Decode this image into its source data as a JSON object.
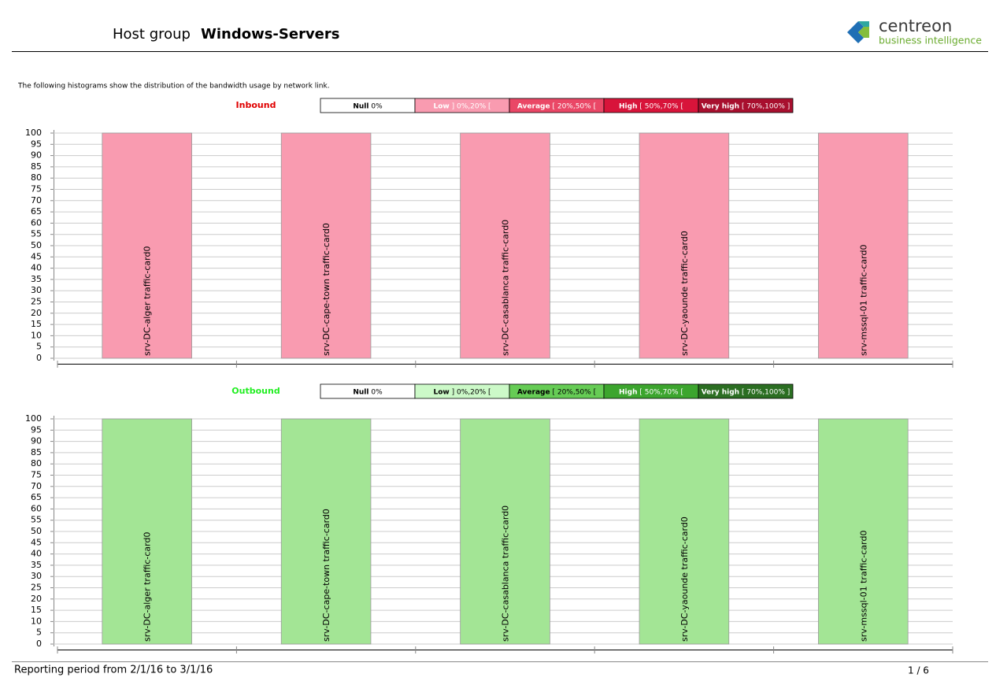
{
  "header": {
    "prefix": "Host group",
    "title": "Windows-Servers",
    "logo_name": "centreon",
    "logo_tagline": "business intelligence"
  },
  "intro": "The following histograms show the distribution of the bandwidth usage by network link.",
  "chart_data": [
    {
      "type": "bar",
      "title": "Inbound",
      "title_color": "#e00000",
      "legend": [
        {
          "name": "Null",
          "range": "0%",
          "color": "#ffffff",
          "text_color": "#000000"
        },
        {
          "name": "Low",
          "range": "] 0%,20% [",
          "color": "#f99bb0",
          "text_color": "#ffffff"
        },
        {
          "name": "Average",
          "range": "[ 20%,50% [",
          "color": "#ea4766",
          "text_color": "#ffffff"
        },
        {
          "name": "High",
          "range": "[ 50%,70% [",
          "color": "#d8143a",
          "text_color": "#ffffff"
        },
        {
          "name": "Very high",
          "range": "[ 70%,100% ]",
          "color": "#a80f2e",
          "text_color": "#ffffff"
        }
      ],
      "categories": [
        "srv-DC-alger traffic-card0",
        "srv-DC-cape-town traffic-card0",
        "srv-DC-casablanca traffic-card0",
        "srv-DC-yaounde traffic-card0",
        "srv-mssql-01 traffic-card0"
      ],
      "values": [
        100,
        100,
        100,
        100,
        100
      ],
      "color": "#f99bb0",
      "ylim": [
        0,
        100
      ],
      "yticks": [
        0,
        5,
        10,
        15,
        20,
        25,
        30,
        35,
        40,
        45,
        50,
        55,
        60,
        65,
        70,
        75,
        80,
        85,
        90,
        95,
        100
      ],
      "grid": true
    },
    {
      "type": "bar",
      "title": "Outbound",
      "title_color": "#22ee22",
      "legend": [
        {
          "name": "Null",
          "range": "0%",
          "color": "#ffffff",
          "text_color": "#000000"
        },
        {
          "name": "Low",
          "range": "] 0%,20% [",
          "color": "#ccf9c8",
          "text_color": "#000000"
        },
        {
          "name": "Average",
          "range": "[ 20%,50% [",
          "color": "#66cc55",
          "text_color": "#000000"
        },
        {
          "name": "High",
          "range": "[ 50%,70% [",
          "color": "#3ca52e",
          "text_color": "#ffffff"
        },
        {
          "name": "Very high",
          "range": "[ 70%,100% ]",
          "color": "#2b6e22",
          "text_color": "#ffffff"
        }
      ],
      "categories": [
        "srv-DC-alger traffic-card0",
        "srv-DC-cape-town traffic-card0",
        "srv-DC-casablanca traffic-card0",
        "srv-DC-yaounde traffic-card0",
        "srv-mssql-01 traffic-card0"
      ],
      "values": [
        100,
        100,
        100,
        100,
        100
      ],
      "color": "#a3e595",
      "ylim": [
        0,
        100
      ],
      "yticks": [
        0,
        5,
        10,
        15,
        20,
        25,
        30,
        35,
        40,
        45,
        50,
        55,
        60,
        65,
        70,
        75,
        80,
        85,
        90,
        95,
        100
      ],
      "grid": true
    }
  ],
  "footer": {
    "period": "Reporting period from 2/1/16 to 3/1/16",
    "page": "1 / 6"
  }
}
